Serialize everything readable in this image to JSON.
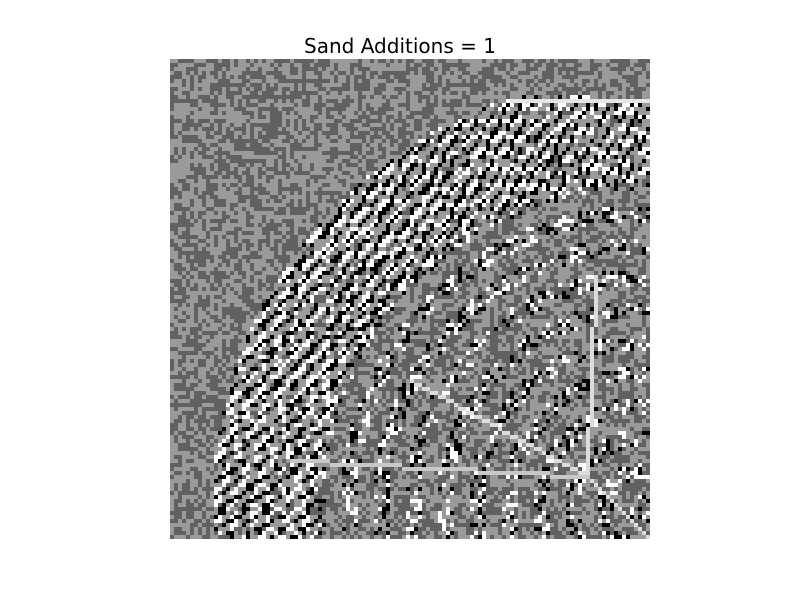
{
  "title": "Sand Additions = 1",
  "grid": {
    "size": 120,
    "colors": {
      "dark": "#616161",
      "mid": "#9a9a9a",
      "black": "#000000",
      "white": "#ffffff",
      "gray-dark-shadow": "#3a3a3a",
      "gray-light": "#cfcfcf"
    },
    "colormap": "gray",
    "description_of_content": ""
  }
}
